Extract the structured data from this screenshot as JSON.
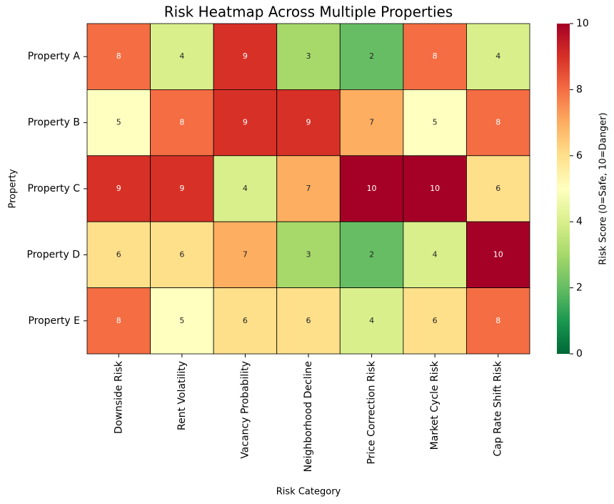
{
  "chart_data": {
    "type": "heatmap",
    "title": "Risk Heatmap Across Multiple Properties",
    "x_label": "Risk Category",
    "y_label": "Property",
    "x_categories": [
      "Downside Risk",
      "Rent Volatility",
      "Vacancy Probability",
      "Neighborhood Decline",
      "Price Correction Risk",
      "Market Cycle Risk",
      "Cap Rate Shift Risk"
    ],
    "y_categories": [
      "Property A",
      "Property B",
      "Property C",
      "Property D",
      "Property E"
    ],
    "values": [
      [
        8,
        4,
        9,
        3,
        2,
        8,
        4
      ],
      [
        5,
        8,
        9,
        9,
        7,
        5,
        8
      ],
      [
        9,
        9,
        4,
        7,
        10,
        10,
        6
      ],
      [
        6,
        6,
        7,
        3,
        2,
        4,
        10
      ],
      [
        8,
        5,
        6,
        6,
        4,
        6,
        8
      ]
    ],
    "colorbar_label": "Risk Score (0=Safe, 10=Danger)",
    "clim": [
      0,
      10
    ],
    "colorbar_ticks": [
      0,
      2,
      4,
      6,
      8,
      10
    ],
    "colormap": [
      "#006837",
      "#1a9850",
      "#66bd63",
      "#a6d96a",
      "#d9ef8b",
      "#ffffbf",
      "#fee08b",
      "#fdae61",
      "#f46d43",
      "#d73027",
      "#a50026"
    ],
    "cell_border_color": "#000000"
  }
}
